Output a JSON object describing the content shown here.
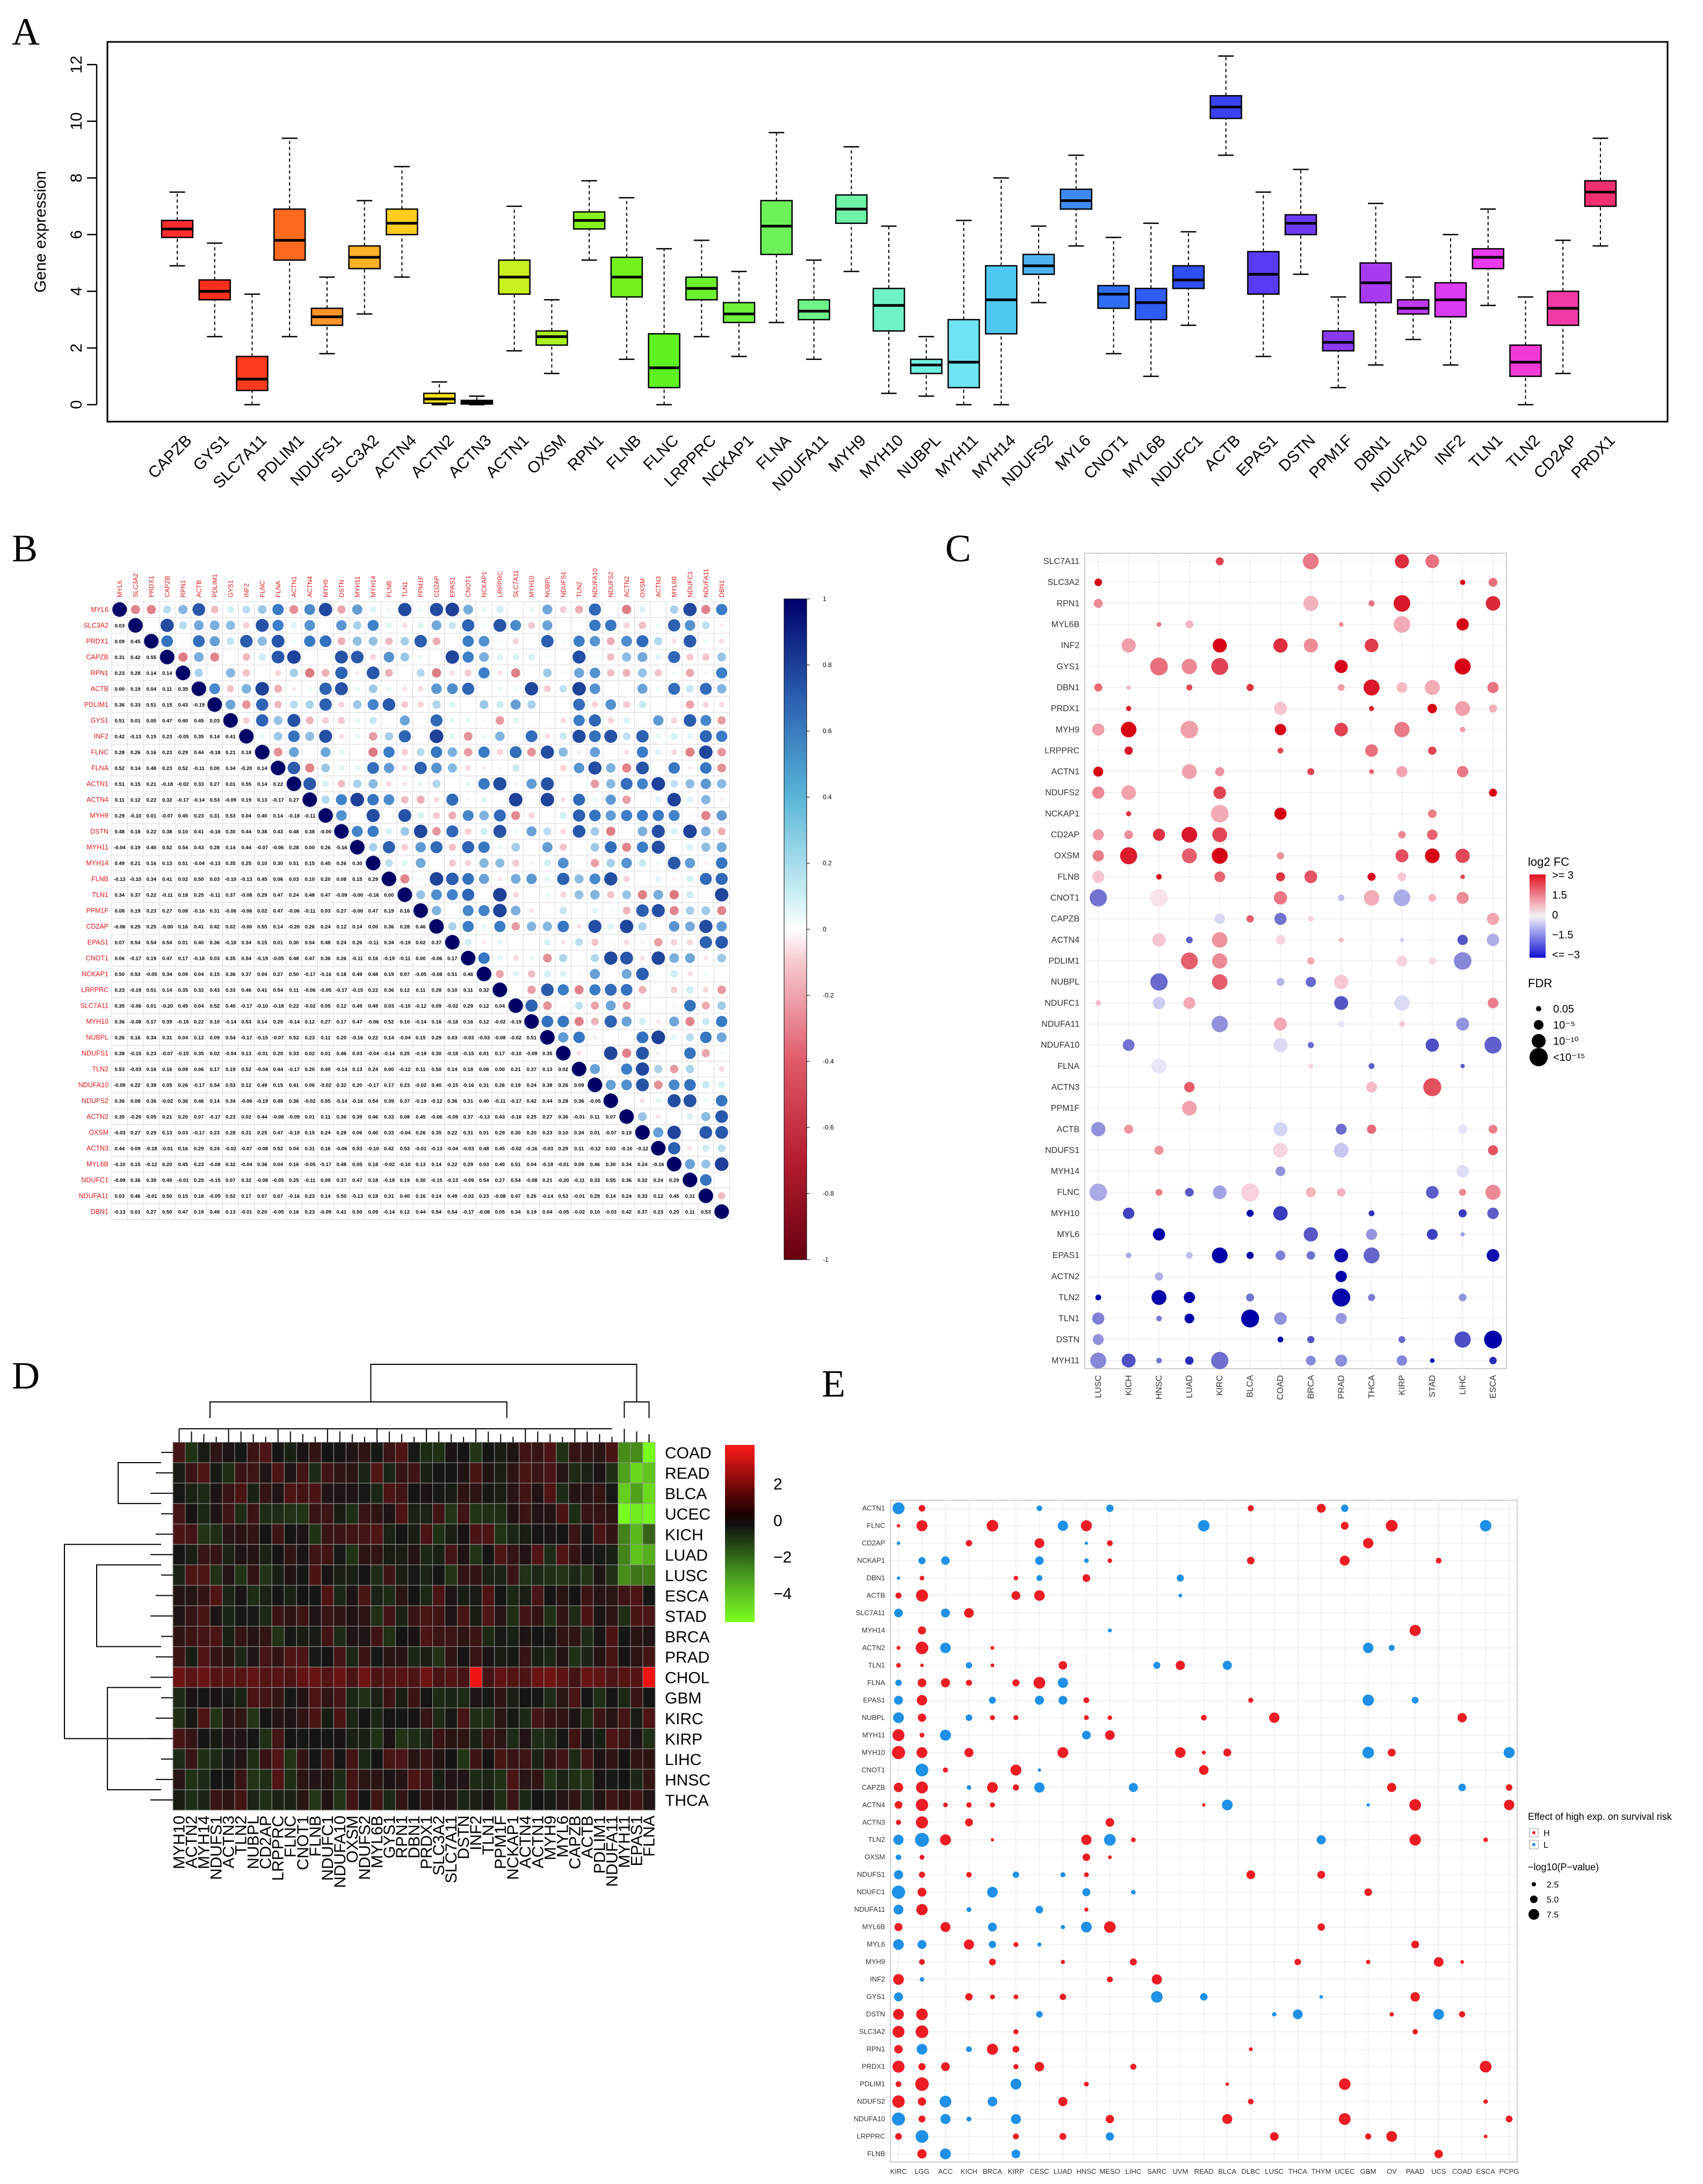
{
  "panels": {
    "a": "A",
    "b": "B",
    "c": "C",
    "d": "D",
    "e": "E"
  },
  "chart_data": [
    {
      "id": "A",
      "type": "box",
      "ylabel": "Gene expression",
      "ylim": [
        -0.6,
        12.8
      ],
      "yticks": [
        "0",
        "2",
        "4",
        "6",
        "8",
        "10",
        "12"
      ],
      "categories": [
        "CAPZB",
        "GYS1",
        "SLC7A11",
        "PDLIM1",
        "NDUFS1",
        "SLC3A2",
        "ACTN4",
        "ACTN2",
        "ACTN3",
        "ACTN1",
        "OXSM",
        "RPN1",
        "FLNB",
        "FLNC",
        "LRPPRC",
        "NCKAP1",
        "FLNA",
        "NDUFA11",
        "MYH9",
        "MYH10",
        "NUBPL",
        "MYH11",
        "MYH14",
        "NDUFS2",
        "MYL6",
        "CNOT1",
        "MYL6B",
        "NDUFC1",
        "ACTB",
        "EPAS1",
        "DSTN",
        "PPM1F",
        "DBN1",
        "NDUFA10",
        "INF2",
        "TLN1",
        "TLN2",
        "CD2AP",
        "PRDX1"
      ],
      "colors": [
        "#ff2e2e",
        "#ff2e1d",
        "#ff3b1f",
        "#ff6a1f",
        "#ff9428",
        "#ffb026",
        "#ffcd1f",
        "#ffe01c",
        "#f1ec1f",
        "#c9f01f",
        "#a9f21f",
        "#86f21f",
        "#74f21f",
        "#5ef21f",
        "#6cf22e",
        "#6ef23a",
        "#6ef25a",
        "#6ef28a",
        "#6ef2a6",
        "#6ef2c9",
        "#6ef0e1",
        "#6ee4f2",
        "#4fc9f2",
        "#4fb3f2",
        "#3f8af2",
        "#2f6df2",
        "#2f5df2",
        "#2f4ff2",
        "#3a42f2",
        "#5a3af2",
        "#6e3af2",
        "#8a3af2",
        "#a83af2",
        "#c03af2",
        "#da3af2",
        "#ec3af2",
        "#f23ad6",
        "#f23aa6",
        "#f2306e"
      ],
      "box": [
        [
          4.9,
          5.9,
          6.2,
          6.5,
          7.5
        ],
        [
          2.4,
          3.7,
          4.0,
          4.4,
          5.7
        ],
        [
          0.0,
          0.5,
          0.9,
          1.7,
          3.9
        ],
        [
          2.4,
          5.1,
          5.8,
          6.9,
          9.4
        ],
        [
          1.8,
          2.8,
          3.1,
          3.4,
          4.5
        ],
        [
          3.2,
          4.8,
          5.2,
          5.6,
          7.2
        ],
        [
          4.5,
          6.0,
          6.4,
          6.9,
          8.4
        ],
        [
          0.0,
          0.05,
          0.2,
          0.4,
          0.8
        ],
        [
          0.0,
          0.02,
          0.08,
          0.15,
          0.3
        ],
        [
          1.9,
          3.9,
          4.5,
          5.1,
          7.0
        ],
        [
          1.1,
          2.1,
          2.4,
          2.6,
          3.7
        ],
        [
          5.1,
          6.2,
          6.5,
          6.8,
          7.9
        ],
        [
          1.6,
          3.8,
          4.5,
          5.2,
          7.3
        ],
        [
          0.0,
          0.6,
          1.3,
          2.5,
          5.5
        ],
        [
          2.4,
          3.7,
          4.1,
          4.5,
          5.8
        ],
        [
          1.7,
          2.9,
          3.2,
          3.6,
          4.7
        ],
        [
          2.9,
          5.3,
          6.3,
          7.2,
          9.6
        ],
        [
          1.6,
          3.0,
          3.3,
          3.7,
          5.1
        ],
        [
          4.7,
          6.4,
          6.9,
          7.4,
          9.1
        ],
        [
          0.4,
          2.6,
          3.5,
          4.1,
          6.3
        ],
        [
          0.3,
          1.1,
          1.4,
          1.6,
          2.4
        ],
        [
          0.0,
          0.6,
          1.5,
          3.0,
          6.5
        ],
        [
          0.0,
          2.5,
          3.7,
          4.9,
          8.0
        ],
        [
          3.6,
          4.6,
          4.9,
          5.3,
          6.3
        ],
        [
          5.6,
          6.9,
          7.2,
          7.6,
          8.8
        ],
        [
          1.8,
          3.4,
          3.9,
          4.2,
          5.9
        ],
        [
          1.0,
          3.0,
          3.6,
          4.1,
          6.4
        ],
        [
          2.8,
          4.1,
          4.4,
          4.9,
          6.1
        ],
        [
          8.8,
          10.1,
          10.5,
          10.9,
          12.3
        ],
        [
          1.7,
          3.9,
          4.6,
          5.4,
          7.5
        ],
        [
          4.6,
          6.0,
          6.4,
          6.7,
          8.3
        ],
        [
          0.6,
          1.9,
          2.2,
          2.6,
          3.8
        ],
        [
          1.4,
          3.6,
          4.3,
          5.0,
          7.1
        ],
        [
          2.3,
          3.2,
          3.4,
          3.7,
          4.5
        ],
        [
          1.4,
          3.1,
          3.7,
          4.3,
          6.0
        ],
        [
          3.5,
          4.8,
          5.2,
          5.5,
          6.9
        ],
        [
          0.0,
          1.0,
          1.5,
          2.1,
          3.8
        ],
        [
          1.1,
          2.8,
          3.4,
          4.0,
          5.8
        ],
        [
          5.6,
          7.0,
          7.5,
          7.9,
          9.4
        ]
      ]
    },
    {
      "id": "B",
      "type": "heatmap",
      "genes": [
        "MYL6",
        "SLC3A2",
        "PRDX1",
        "CAPZB",
        "RPN1",
        "ACTB",
        "PDLIM1",
        "GYS1",
        "INF2",
        "FLNC",
        "FLNA",
        "ACTN1",
        "ACTN4",
        "MYH9",
        "DSTN",
        "MYH11",
        "MYH14",
        "FLNB",
        "TLN1",
        "PPM1F",
        "CD2AP",
        "EPAS1",
        "CNOT1",
        "NCKAP1",
        "LRPPRC",
        "SLC7A11",
        "MYH10",
        "NUBPL",
        "NDUFS1",
        "TLN2",
        "NDUFA10",
        "NDUFS2",
        "ACTN2",
        "OXSM",
        "ACTN3",
        "MYL6B",
        "NDUFC1",
        "NDUFA11",
        "DBN1"
      ],
      "scale": [
        "1",
        "0.8",
        "0.6",
        "0.4",
        "0.2",
        "0",
        "-0.2",
        "-0.4",
        "-0.6",
        "-0.8",
        "-1"
      ]
    },
    {
      "id": "C",
      "type": "scatter",
      "genes": [
        "SLC7A11",
        "SLC3A2",
        "RPN1",
        "MYL6B",
        "INF2",
        "GYS1",
        "DBN1",
        "PRDX1",
        "MYH9",
        "LRPPRC",
        "ACTN1",
        "NDUFS2",
        "NCKAP1",
        "CD2AP",
        "OXSM",
        "FLNB",
        "CNOT1",
        "CAPZB",
        "ACTN4",
        "PDLIM1",
        "NUBPL",
        "NDUFC1",
        "NDUFA11",
        "NDUFA10",
        "FLNA",
        "ACTN3",
        "PPM1F",
        "ACTB",
        "NDUFS1",
        "MYH14",
        "FLNC",
        "MYH10",
        "MYL6",
        "EPAS1",
        "ACTN2",
        "TLN2",
        "TLN1",
        "DSTN",
        "MYH11"
      ],
      "cancers": [
        "LUSC",
        "KICH",
        "HNSC",
        "LUAD",
        "KIRC",
        "BLCA",
        "COAD",
        "BRCA",
        "PRAD",
        "THCA",
        "KIRP",
        "STAD",
        "LIHC",
        "ESCA"
      ],
      "legend": {
        "fc_title": "log2 FC",
        "fc_ticks": [
          ">= 3",
          "1.5",
          "0",
          "−1.5",
          "<= −3"
        ],
        "fdr_title": "FDR",
        "fdr_ticks": [
          "0.05",
          "10⁻⁵",
          "10⁻¹⁰",
          "<10⁻¹⁵"
        ]
      }
    },
    {
      "id": "D",
      "type": "heatmap",
      "rows": [
        "COAD",
        "READ",
        "BLCA",
        "UCEC",
        "KICH",
        "LUAD",
        "LUSC",
        "ESCA",
        "STAD",
        "BRCA",
        "PRAD",
        "CHOL",
        "GBM",
        "KIRC",
        "KIRP",
        "LIHC",
        "HNSC",
        "THCA"
      ],
      "cols": [
        "MYH10",
        "ACTN2",
        "MYH14",
        "NDUFS1",
        "ACTN3",
        "TLN2",
        "NUBPL",
        "CD2AP",
        "LRPPRC",
        "FLNC",
        "CNOT1",
        "FLNB",
        "NDUFC1",
        "NDUFA10",
        "OXSM",
        "NDUFS2",
        "MYL6B",
        "GYS1",
        "RPN1",
        "DBN1",
        "PRDX1",
        "SLC3A2",
        "SLC7A11",
        "DSTN",
        "INF2",
        "TLN1",
        "PPM1F",
        "NCKAP1",
        "ACTN4",
        "ACTN1",
        "MYH9",
        "MYL6",
        "CAPZB",
        "ACTB",
        "PDLIM1",
        "NDUFA11",
        "MYH11",
        "EPAS1",
        "FLNA"
      ],
      "scale": [
        "2",
        "0",
        "−2",
        "−4"
      ]
    },
    {
      "id": "E",
      "type": "scatter",
      "genes": [
        "ACTN1",
        "FLNC",
        "CD2AP",
        "NCKAP1",
        "DBN1",
        "ACTB",
        "SLC7A11",
        "MYH14",
        "ACTN2",
        "TLN1",
        "FLNA",
        "EPAS1",
        "NUBPL",
        "MYH11",
        "MYH10",
        "CNOT1",
        "CAPZB",
        "ACTN4",
        "ACTN3",
        "TLN2",
        "OXSM",
        "NDUFS1",
        "NDUFC1",
        "NDUFA11",
        "MYL6B",
        "MYL6",
        "MYH9",
        "INF2",
        "GYS1",
        "DSTN",
        "SLC3A2",
        "RPN1",
        "PRDX1",
        "PDLIM1",
        "NDUFS2",
        "NDUFA10",
        "LRPPRC",
        "FLNB"
      ],
      "cancers": [
        "KIRC",
        "LGG",
        "ACC",
        "KICH",
        "BRCA",
        "KIRP",
        "CESC",
        "LUAD",
        "HNSC",
        "MESO",
        "LIHC",
        "SARC",
        "UVM",
        "READ",
        "BLCA",
        "DLBC",
        "LUSC",
        "THCA",
        "THYM",
        "UCEC",
        "GBM",
        "OV",
        "PAAD",
        "UCS",
        "COAD",
        "ESCA",
        "PCPG"
      ],
      "legend": {
        "title": "Effect of high exp. on survival risk",
        "h": "H",
        "l": "L",
        "p_title": "−log10(P−value)",
        "p_ticks": [
          "2.5",
          "5.0",
          "7.5"
        ]
      }
    }
  ]
}
